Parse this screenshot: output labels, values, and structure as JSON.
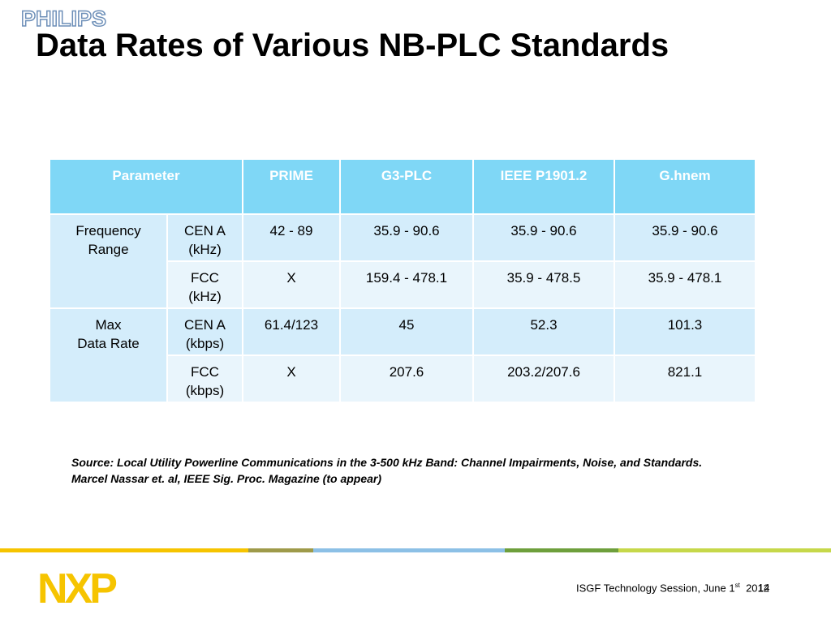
{
  "brand": "PHILIPS",
  "title": "Data Rates of Various NB-PLC Standards",
  "table": {
    "header": [
      "Parameter",
      "PRIME",
      "G3-PLC",
      "IEEE P1901.2",
      "G.hnem"
    ],
    "groups": [
      {
        "label": "Frequency\nRange",
        "rows": [
          {
            "unit": "CEN A\n(kHz)",
            "values": [
              "42 - 89",
              "35.9 - 90.6",
              "35.9 - 90.6",
              "35.9 - 90.6"
            ]
          },
          {
            "unit": "FCC\n(kHz)",
            "values": [
              "X",
              "159.4 - 478.1",
              "35.9 - 478.5",
              "35.9 - 478.1"
            ]
          }
        ]
      },
      {
        "label": "Max\nData Rate",
        "rows": [
          {
            "unit": "CEN A\n(kbps)",
            "values": [
              "61.4/123",
              "45",
              "52.3",
              "101.3"
            ]
          },
          {
            "unit": "FCC\n(kbps)",
            "values": [
              "X",
              "207.6",
              "203.2/207.6",
              "821.1"
            ]
          }
        ]
      }
    ]
  },
  "source": "Source: Local Utility Powerline Communications in the 3-500 kHz Band: Channel Impairments, Noise, and Standards. Marcel Nassar et. al, IEEE Sig. Proc. Magazine (to appear)",
  "footer": {
    "logo": "NXP",
    "text": "ISGF Technology Session, June 1",
    "superscript": "st",
    "year": "2012",
    "page_number": "14"
  }
}
